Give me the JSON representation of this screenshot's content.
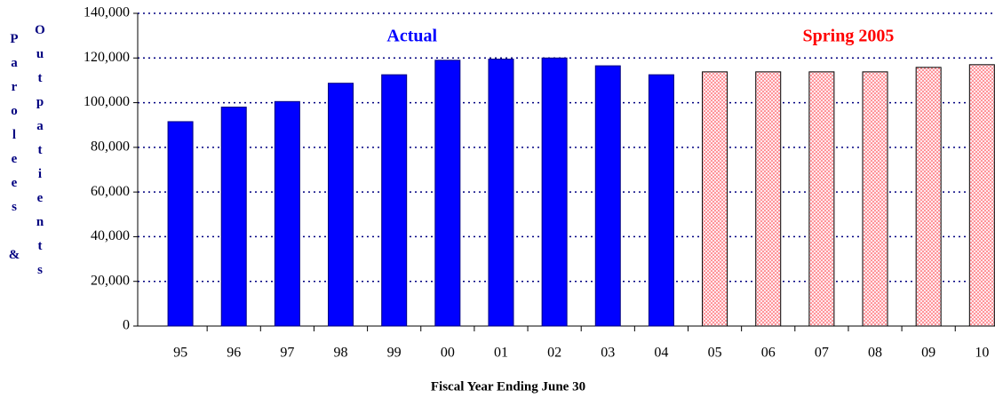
{
  "chart_data": {
    "type": "bar",
    "xlabel": "Fiscal Year Ending June 30",
    "ylabel": [
      "Parolees &",
      "Outpatients"
    ],
    "categories": [
      "95",
      "96",
      "97",
      "98",
      "99",
      "00",
      "01",
      "02",
      "03",
      "04",
      "05",
      "06",
      "07",
      "08",
      "09",
      "10"
    ],
    "series": [
      {
        "name": "Actual",
        "color": "#0000ff",
        "values": [
          91500,
          98000,
          100500,
          108700,
          112500,
          119000,
          119500,
          120000,
          116500,
          112500,
          null,
          null,
          null,
          null,
          null,
          null
        ]
      },
      {
        "name": "Spring 2005",
        "color": "#ff0000",
        "values": [
          null,
          null,
          null,
          null,
          null,
          null,
          null,
          null,
          null,
          null,
          113800,
          113800,
          113800,
          113800,
          115800,
          117000
        ]
      }
    ],
    "ylim": [
      0,
      140000
    ],
    "yticks": [
      0,
      {
        "value": 20000,
        "label": "20,000"
      },
      {
        "value": 40000,
        "label": "40,000"
      },
      {
        "value": 60000,
        "label": "60,000"
      },
      {
        "value": 80000,
        "label": "80,000"
      },
      {
        "value": 100000,
        "label": "100,000"
      },
      {
        "value": 120000,
        "label": "120,000"
      },
      {
        "value": 140000,
        "label": "140,000"
      }
    ],
    "grid": true
  }
}
